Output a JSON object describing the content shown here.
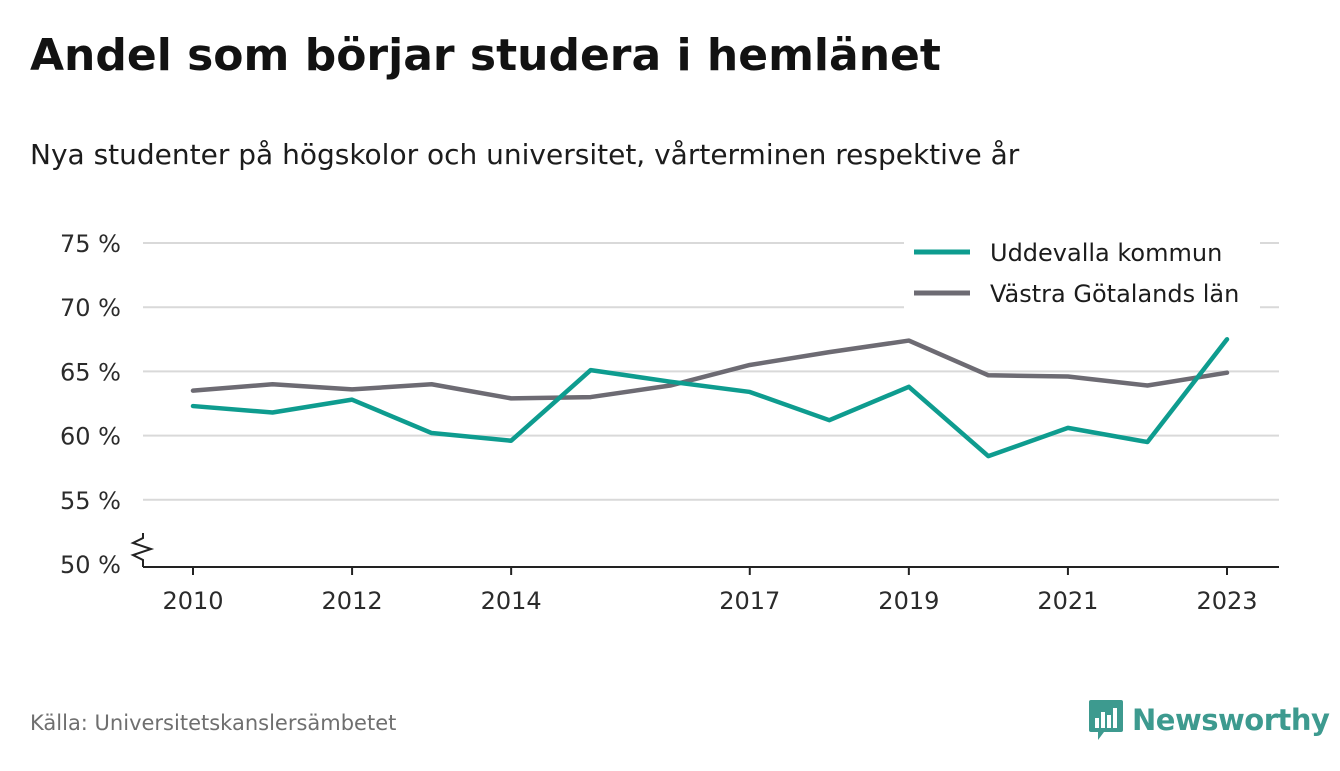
{
  "title": "Andel som börjar studera i hemlänet",
  "subtitle": "Nya studenter på högskolor och universitet, vårterminen respektive år",
  "source": "Källa: Universitetskanslersämbetet",
  "brand": "Newsworthy",
  "colors": {
    "accent": "#0e9c8f",
    "secondary": "#6d6b73",
    "grid": "#d9d9d9",
    "brand": "#3d9a8f"
  },
  "chart_data": {
    "type": "line",
    "title": "Andel som börjar studera i hemlänet",
    "ylabel": "",
    "xlabel": "",
    "ylim": [
      50,
      75
    ],
    "y_ticks": [
      50,
      55,
      60,
      65,
      70,
      75
    ],
    "y_tick_labels": [
      "50 %",
      "55 %",
      "60 %",
      "65 %",
      "70 %",
      "75 %"
    ],
    "y_axis_break": true,
    "x": [
      2010,
      2011,
      2012,
      2013,
      2014,
      2015,
      2016,
      2017,
      2018,
      2019,
      2020,
      2021,
      2022,
      2023
    ],
    "x_ticks": [
      2010,
      2012,
      2014,
      2017,
      2019,
      2021,
      2023
    ],
    "grid": "horizontal",
    "legend_position": "top-right",
    "series": [
      {
        "name": "Uddevalla kommun",
        "color": "#0e9c8f",
        "values": [
          62.3,
          61.8,
          62.8,
          60.2,
          59.6,
          65.1,
          64.2,
          63.4,
          61.2,
          63.8,
          58.4,
          60.6,
          59.5,
          67.5
        ]
      },
      {
        "name": "Västra Götalands län",
        "color": "#6d6b73",
        "values": [
          63.5,
          64.0,
          63.6,
          64.0,
          62.9,
          63.0,
          63.9,
          65.5,
          66.5,
          67.4,
          64.7,
          64.6,
          63.9,
          64.9
        ]
      }
    ]
  }
}
